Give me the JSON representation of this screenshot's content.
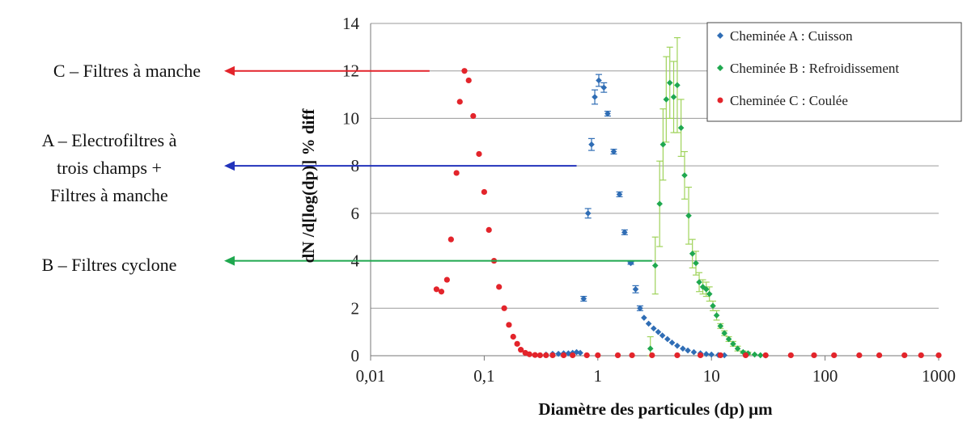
{
  "chart_data": {
    "type": "scatter",
    "xlabel": "Diamètre des particules (dp) µm",
    "ylabel": "dN /d[log(dp)] % diff",
    "xscale": "log",
    "xlim": [
      0.01,
      1000
    ],
    "ylim": [
      0,
      14
    ],
    "x_tick_values": [
      0.01,
      0.1,
      1,
      10,
      100,
      1000
    ],
    "x_tick_labels": [
      "0,01",
      "0,1",
      "1",
      "10",
      "100",
      "1000"
    ],
    "y_tick_values": [
      0,
      2,
      4,
      6,
      8,
      10,
      12,
      14
    ],
    "y_tick_labels": [
      "0",
      "2",
      "4",
      "6",
      "8",
      "10",
      "12",
      "14"
    ],
    "grid": "horizontal",
    "legend_position": "top-right",
    "series": [
      {
        "name": "Cheminée A : Cuisson",
        "color": "#2f6db5",
        "points": [
          [
            0.35,
            0.05
          ],
          [
            0.4,
            0.08
          ],
          [
            0.45,
            0.08
          ],
          [
            0.5,
            0.1
          ],
          [
            0.55,
            0.1
          ],
          [
            0.6,
            0.12
          ],
          [
            0.65,
            0.15
          ],
          [
            0.7,
            0.12
          ],
          [
            0.75,
            2.4
          ],
          [
            0.82,
            6.0
          ],
          [
            0.88,
            8.9
          ],
          [
            0.94,
            10.9
          ],
          [
            1.02,
            11.6
          ],
          [
            1.13,
            11.3
          ],
          [
            1.22,
            10.2
          ],
          [
            1.38,
            8.6
          ],
          [
            1.55,
            6.8
          ],
          [
            1.72,
            5.2
          ],
          [
            1.95,
            3.9
          ],
          [
            2.15,
            2.8
          ],
          [
            2.35,
            2.0
          ],
          [
            2.55,
            1.6
          ],
          [
            2.8,
            1.35
          ],
          [
            3.1,
            1.15
          ],
          [
            3.4,
            1.0
          ],
          [
            3.7,
            0.85
          ],
          [
            4.1,
            0.7
          ],
          [
            4.5,
            0.55
          ],
          [
            5.0,
            0.42
          ],
          [
            5.6,
            0.3
          ],
          [
            6.2,
            0.22
          ],
          [
            7.0,
            0.15
          ],
          [
            8.0,
            0.1
          ],
          [
            9.0,
            0.07
          ],
          [
            10.0,
            0.05
          ],
          [
            11.5,
            0.03
          ],
          [
            13.0,
            0.02
          ]
        ],
        "error": [
          0,
          0,
          0,
          0,
          0,
          0,
          0,
          0,
          0.1,
          0.2,
          0.25,
          0.3,
          0.25,
          0.2,
          0.1,
          0.1,
          0.1,
          0.1,
          0.05,
          0.15,
          0.1,
          0,
          0,
          0,
          0,
          0,
          0,
          0,
          0,
          0,
          0,
          0,
          0,
          0,
          0,
          0,
          0
        ]
      },
      {
        "name": "Cheminée B : Refroidissement",
        "color": "#1fa84f",
        "points": [
          [
            2.9,
            0.3
          ],
          [
            3.2,
            3.8
          ],
          [
            3.5,
            6.4
          ],
          [
            3.75,
            8.9
          ],
          [
            4.0,
            10.8
          ],
          [
            4.3,
            11.5
          ],
          [
            4.65,
            10.9
          ],
          [
            5.0,
            11.4
          ],
          [
            5.4,
            9.6
          ],
          [
            5.8,
            7.6
          ],
          [
            6.3,
            5.9
          ],
          [
            6.8,
            4.3
          ],
          [
            7.3,
            3.9
          ],
          [
            7.8,
            3.1
          ],
          [
            8.4,
            2.9
          ],
          [
            9.0,
            2.8
          ],
          [
            9.6,
            2.6
          ],
          [
            10.3,
            2.1
          ],
          [
            11.1,
            1.7
          ],
          [
            12.0,
            1.25
          ],
          [
            13.0,
            0.95
          ],
          [
            14.2,
            0.7
          ],
          [
            15.5,
            0.5
          ],
          [
            17.0,
            0.3
          ],
          [
            19.0,
            0.15
          ],
          [
            21.0,
            0.1
          ],
          [
            24.0,
            0.05
          ],
          [
            27.0,
            0.02
          ],
          [
            30.0,
            0.01
          ]
        ],
        "error": [
          0.5,
          1.2,
          1.8,
          1.5,
          1.8,
          1.5,
          1.5,
          2.0,
          1.2,
          1.0,
          1.2,
          0.6,
          0.5,
          0.4,
          0.3,
          0.3,
          0.3,
          0.2,
          0.2,
          0.1,
          0.1,
          0.1,
          0.1,
          0.1,
          0.05,
          0.05,
          0,
          0,
          0
        ]
      },
      {
        "name": "Cheminée C : Coulée",
        "color": "#e3242b",
        "points": [
          [
            0.038,
            2.8
          ],
          [
            0.042,
            2.7
          ],
          [
            0.047,
            3.2
          ],
          [
            0.051,
            4.9
          ],
          [
            0.057,
            7.7
          ],
          [
            0.061,
            10.7
          ],
          [
            0.067,
            12.0
          ],
          [
            0.073,
            11.6
          ],
          [
            0.08,
            10.1
          ],
          [
            0.09,
            8.5
          ],
          [
            0.1,
            6.9
          ],
          [
            0.11,
            5.3
          ],
          [
            0.122,
            4.0
          ],
          [
            0.135,
            2.9
          ],
          [
            0.15,
            2.0
          ],
          [
            0.165,
            1.3
          ],
          [
            0.18,
            0.8
          ],
          [
            0.195,
            0.5
          ],
          [
            0.21,
            0.25
          ],
          [
            0.23,
            0.12
          ],
          [
            0.25,
            0.06
          ],
          [
            0.28,
            0.03
          ],
          [
            0.31,
            0.02
          ],
          [
            0.35,
            0.02
          ],
          [
            0.4,
            0.02
          ],
          [
            0.5,
            0.02
          ],
          [
            0.6,
            0.02
          ],
          [
            0.8,
            0.02
          ],
          [
            1,
            0.02
          ],
          [
            1.5,
            0.02
          ],
          [
            2,
            0.02
          ],
          [
            3,
            0.02
          ],
          [
            5,
            0.02
          ],
          [
            8,
            0.02
          ],
          [
            12,
            0.02
          ],
          [
            20,
            0.02
          ],
          [
            30,
            0.02
          ],
          [
            50,
            0.02
          ],
          [
            80,
            0.02
          ],
          [
            120,
            0.02
          ],
          [
            200,
            0.02
          ],
          [
            300,
            0.02
          ],
          [
            500,
            0.02
          ],
          [
            700,
            0.02
          ],
          [
            1000,
            0.02
          ]
        ],
        "error": []
      }
    ],
    "annotations": [
      {
        "id": "C",
        "text": [
          "C – Filtres à manche"
        ],
        "y": 12,
        "color": "#e3242b",
        "x_end": 0.033
      },
      {
        "id": "A",
        "text": [
          "A – Electrofiltres à",
          "trois champs +",
          "Filtres à manche"
        ],
        "y": 8,
        "color": "#2233bb",
        "x_end": 0.65
      },
      {
        "id": "B",
        "text": [
          "B – Filtres cyclone"
        ],
        "y": 4,
        "color": "#1fa84f",
        "x_end": 3.0
      }
    ]
  }
}
